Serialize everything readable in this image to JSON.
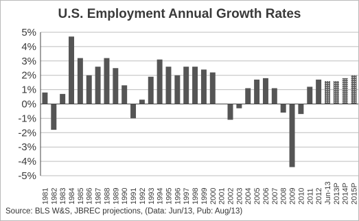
{
  "chart_data": {
    "type": "bar",
    "title": "U.S. Employment Annual Growth Rates",
    "source": "Source: BLS W&S, JBREC projections, (Data: Jun/13, Pub: Aug/13)",
    "ylim": [
      -5,
      5
    ],
    "ytick_labels": [
      "5%",
      "4%",
      "3%",
      "2%",
      "1%",
      "0%",
      "-1%",
      "-2%",
      "-3%",
      "-4%",
      "-5%"
    ],
    "grid": true,
    "categories": [
      "1981",
      "1982",
      "1983",
      "1984",
      "1985",
      "1986",
      "1987",
      "1988",
      "1989",
      "1990",
      "1991",
      "1992",
      "1993",
      "1994",
      "1995",
      "1996",
      "1997",
      "1998",
      "1999",
      "2000",
      "2001",
      "2002",
      "2003",
      "2004",
      "2005",
      "2006",
      "2007",
      "2008",
      "2009",
      "2010",
      "2011",
      "2012",
      "Jun-13",
      "2013P",
      "2014P",
      "2015P"
    ],
    "values": [
      0.8,
      -1.8,
      0.7,
      4.7,
      3.2,
      2.0,
      2.6,
      3.2,
      2.5,
      1.3,
      -1.0,
      0.3,
      1.9,
      3.1,
      2.6,
      2.0,
      2.6,
      2.6,
      2.4,
      2.2,
      0.0,
      -1.1,
      -0.3,
      1.1,
      1.7,
      1.8,
      1.1,
      -0.6,
      -4.4,
      -0.7,
      1.2,
      1.7,
      1.6,
      1.6,
      1.8,
      2.0
    ],
    "projected": [
      false,
      false,
      false,
      false,
      false,
      false,
      false,
      false,
      false,
      false,
      false,
      false,
      false,
      false,
      false,
      false,
      false,
      false,
      false,
      false,
      false,
      false,
      false,
      false,
      false,
      false,
      false,
      false,
      false,
      false,
      false,
      false,
      true,
      true,
      true,
      true
    ],
    "colors": {
      "bar": "#555555",
      "projected_bar": "#8c8c8c",
      "grid": "#bdbdbd",
      "axis": "#444444"
    }
  }
}
